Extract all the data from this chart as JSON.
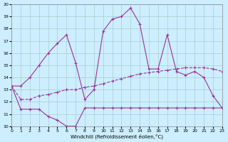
{
  "xlabel": "Windchill (Refroidissement éolien,°C)",
  "bg_color": "#cceeff",
  "grid_color": "#aacccc",
  "line_color": "#993399",
  "xlim": [
    0,
    23
  ],
  "ylim": [
    10,
    20
  ],
  "xticks": [
    0,
    1,
    2,
    3,
    4,
    5,
    6,
    7,
    8,
    9,
    10,
    11,
    12,
    13,
    14,
    15,
    16,
    17,
    18,
    19,
    20,
    21,
    22,
    23
  ],
  "yticks": [
    10,
    11,
    12,
    13,
    14,
    15,
    16,
    17,
    18,
    19,
    20
  ],
  "line1_x": [
    0,
    1,
    2,
    3,
    4,
    5,
    6,
    7,
    8,
    9,
    10,
    11,
    12,
    13,
    14,
    15,
    16,
    17,
    18,
    19,
    20,
    21,
    22,
    23
  ],
  "line1_y": [
    13.3,
    13.3,
    14.0,
    15.0,
    16.0,
    16.8,
    17.5,
    15.2,
    12.2,
    13.0,
    17.8,
    18.8,
    19.0,
    19.7,
    18.4,
    14.7,
    14.7,
    17.5,
    14.5,
    14.2,
    14.5,
    14.0,
    12.5,
    11.5
  ],
  "line2_x": [
    0,
    1,
    2,
    3,
    4,
    5,
    6,
    7,
    8,
    9,
    10,
    11,
    12,
    13,
    14,
    15,
    16,
    17,
    18,
    19,
    20,
    21,
    22,
    23
  ],
  "line2_y": [
    13.3,
    12.2,
    12.2,
    12.5,
    12.6,
    12.8,
    13.0,
    13.0,
    13.2,
    13.3,
    13.5,
    13.7,
    13.9,
    14.1,
    14.3,
    14.4,
    14.5,
    14.6,
    14.7,
    14.8,
    14.8,
    14.8,
    14.7,
    14.5
  ],
  "line3_x": [
    0,
    1,
    2,
    3,
    4,
    5,
    6,
    7,
    8,
    9,
    10,
    11,
    12,
    13,
    14,
    15,
    16,
    17,
    18,
    19,
    20,
    21,
    22,
    23
  ],
  "line3_y": [
    13.3,
    11.4,
    11.4,
    11.4,
    10.8,
    10.5,
    10.0,
    10.0,
    11.5,
    11.5,
    11.5,
    11.5,
    11.5,
    11.5,
    11.5,
    11.5,
    11.5,
    11.5,
    11.5,
    11.5,
    11.5,
    11.5,
    11.5,
    11.5
  ]
}
